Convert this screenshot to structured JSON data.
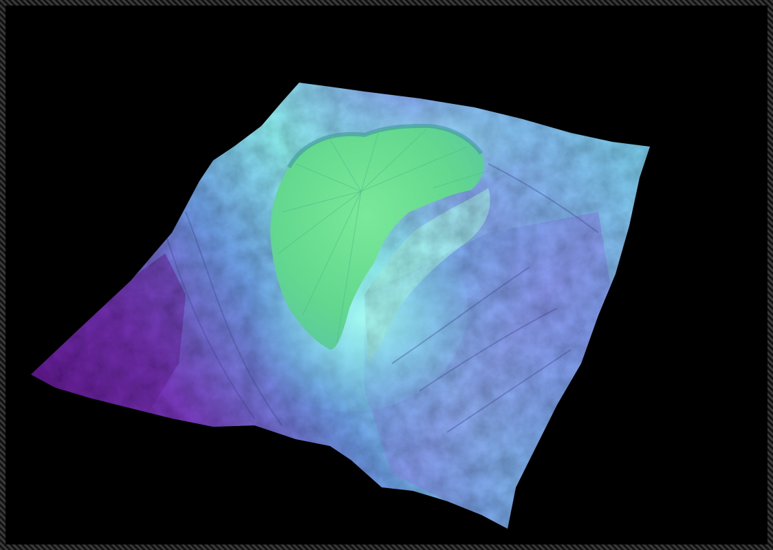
{
  "scene": {
    "background_color": "#000000",
    "frame_color": "#2a2a2a",
    "subject": "terrain-surface-render",
    "colors": {
      "crater_floor": "#6ee08e",
      "rim_cyan": "#7ff0f0",
      "slope_blue": "#7aa6ff",
      "slope_periwinkle": "#8c8ef0",
      "edge_purple": "#6a1a8a"
    }
  }
}
